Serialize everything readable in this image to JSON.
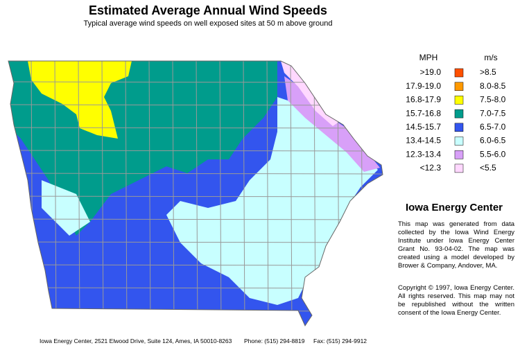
{
  "title": "Estimated Average Annual Wind Speeds",
  "subtitle": "Typical average wind speeds on well exposed sites at 50 m above ground",
  "legend": {
    "mph_header": "MPH",
    "ms_header": "m/s",
    "items": [
      {
        "mph": ">19.0",
        "ms": ">8.5",
        "color": "#ff5000"
      },
      {
        "mph": "17.9-19.0",
        "ms": "8.0-8.5",
        "color": "#ff9900"
      },
      {
        "mph": "16.8-17.9",
        "ms": "7.5-8.0",
        "color": "#ffff00"
      },
      {
        "mph": "15.7-16.8",
        "ms": "7.0-7.5",
        "color": "#009c8c"
      },
      {
        "mph": "14.5-15.7",
        "ms": "6.5-7.0",
        "color": "#3355ee"
      },
      {
        "mph": "13.4-14.5",
        "ms": "6.0-6.5",
        "color": "#c8ffff"
      },
      {
        "mph": "12.3-13.4",
        "ms": "5.5-6.0",
        "color": "#d8a0f8"
      },
      {
        "mph": "<12.3",
        "ms": "<5.5",
        "color": "#ffd8ff"
      }
    ]
  },
  "sidebar": {
    "heading": "Iowa Energy Center",
    "paragraphs": [
      "This map was generated from data collected by the Iowa Wind Energy Institute under Iowa Energy Center Grant No. 93-04-02. The map was created using a model developed by Brower & Company, Andover, MA.",
      "Copyright © 1997, Iowa Energy Center. All rights reserved. This map may not be republished without the written consent of the Iowa Energy Center."
    ]
  },
  "footer": {
    "address": "Iowa Energy Center, 2521 Elwood Drive, Suite 124, Ames, IA 50010-8263",
    "phone": "Phone: (515) 294-8819",
    "fax": "Fax: (515) 294-9912"
  }
}
